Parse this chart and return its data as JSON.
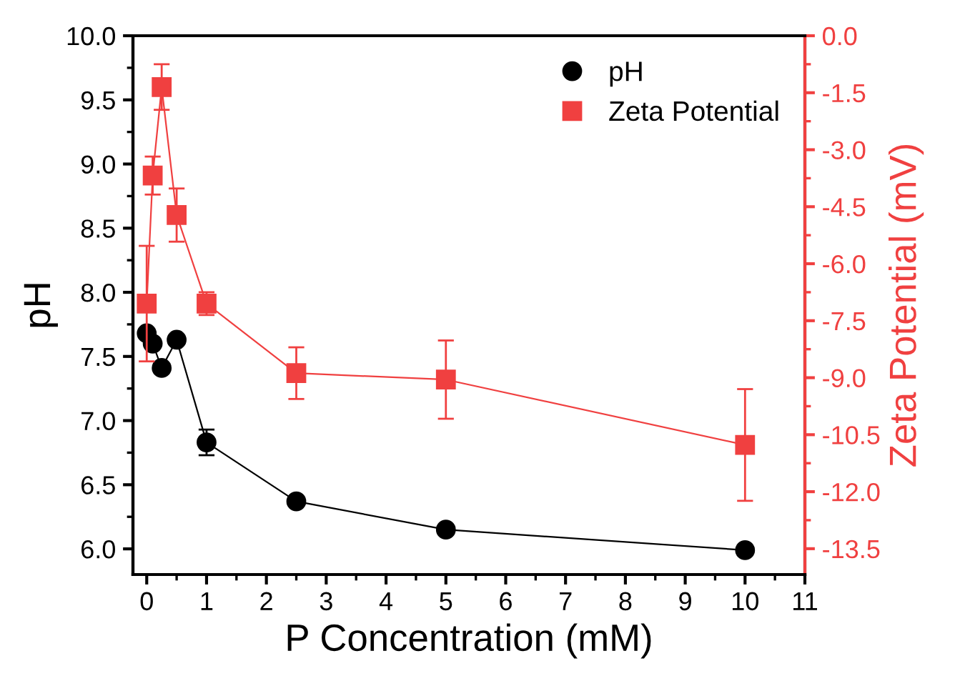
{
  "chart_data": {
    "type": "line",
    "xlabel": "P Concentration (mM)",
    "ylabel": "pH",
    "y2label": "Zeta Potential (mV)",
    "xlim": [
      -0.23,
      11
    ],
    "xticks": [
      0,
      1,
      2,
      3,
      4,
      5,
      6,
      7,
      8,
      9,
      10,
      11
    ],
    "ylim": [
      5.8,
      10.0
    ],
    "yticks": [
      {
        "value": 6,
        "label": "6.0"
      },
      6.5,
      {
        "value": 7,
        "label": "7.0"
      },
      7.5,
      {
        "value": 8,
        "label": "8.0"
      },
      8.5,
      {
        "value": 9,
        "label": "9.0"
      },
      9.5,
      {
        "value": 10,
        "label": "10.0"
      }
    ],
    "y2lim": [
      -14.18,
      0.0
    ],
    "y2ticks": [
      -13.5,
      {
        "value": -12,
        "label": "-12.0"
      },
      -10.5,
      {
        "value": -9,
        "label": "-9.0"
      },
      -7.5,
      {
        "value": -6,
        "label": "-6.0"
      },
      -4.5,
      {
        "value": -3,
        "label": "-3.0"
      },
      -1.5,
      {
        "value": 0,
        "label": "0.0"
      }
    ],
    "legend": "top right",
    "grid": false,
    "series": [
      {
        "name": "pH",
        "color": "#000000",
        "marker": "circle",
        "x": [
          0,
          0.1,
          0.25,
          0.5,
          1,
          2.5,
          5,
          10
        ],
        "values": [
          7.68,
          7.6,
          7.41,
          7.63,
          6.83,
          6.37,
          6.15,
          5.99
        ],
        "errors": [
          null,
          null,
          null,
          null,
          0.1,
          null,
          null,
          null
        ]
      },
      {
        "name": "Zeta Potential",
        "color": "#f04040",
        "marker": "square",
        "axis": "y2",
        "x": [
          0,
          0.1,
          0.25,
          0.5,
          1,
          2.5,
          5,
          10
        ],
        "values": [
          -7.05,
          -3.68,
          -1.35,
          -4.72,
          -7.05,
          -8.88,
          -9.05,
          -10.77
        ],
        "errors": [
          1.52,
          0.5,
          0.6,
          0.7,
          0.3,
          0.68,
          1.03,
          1.47
        ]
      }
    ]
  }
}
